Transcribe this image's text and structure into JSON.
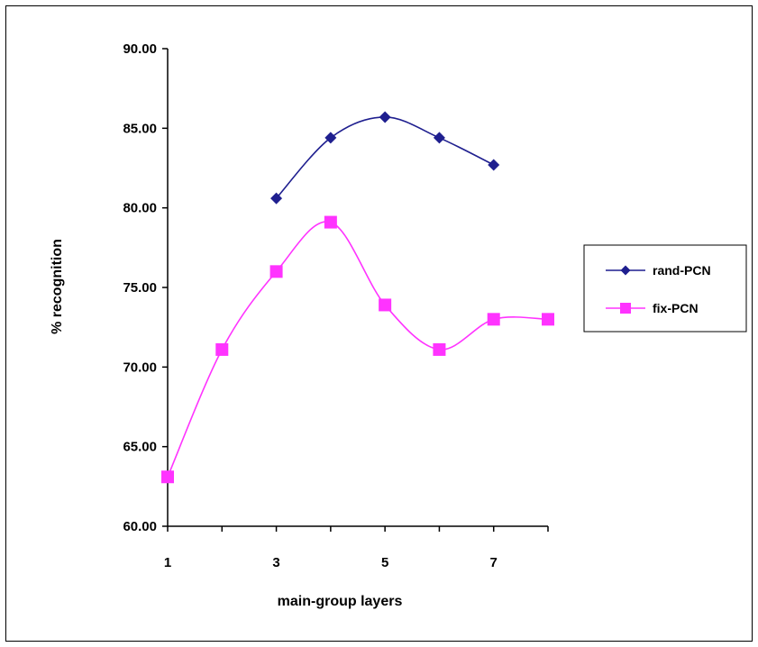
{
  "chart_data": {
    "type": "line",
    "title": "",
    "xlabel": "main-group layers",
    "ylabel": "% recognition",
    "xlim": [
      1,
      8
    ],
    "ylim": [
      60,
      90
    ],
    "x_ticks": [
      "1",
      "3",
      "5",
      "7"
    ],
    "y_ticks": [
      "60.00",
      "65.00",
      "70.00",
      "75.00",
      "80.00",
      "85.00",
      "90.00"
    ],
    "grid": false,
    "legend_position": "right",
    "series": [
      {
        "name": "rand-PCN",
        "color": "#1f1f8f",
        "marker": "diamond",
        "x": [
          3,
          4,
          5,
          6,
          7
        ],
        "y": [
          80.6,
          84.4,
          85.7,
          84.4,
          82.7
        ]
      },
      {
        "name": "fix-PCN",
        "color": "#ff33ff",
        "marker": "square",
        "x": [
          1,
          2,
          3,
          4,
          5,
          6,
          7,
          8
        ],
        "y": [
          63.1,
          71.1,
          76.0,
          79.1,
          73.9,
          71.1,
          73.0,
          73.0
        ]
      }
    ]
  }
}
